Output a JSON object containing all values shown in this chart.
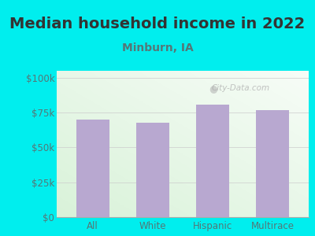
{
  "title": "Median household income in 2022",
  "subtitle": "Minburn, IA",
  "categories": [
    "All",
    "White",
    "Hispanic",
    "Multirace"
  ],
  "values": [
    70000,
    68000,
    80500,
    76500
  ],
  "bar_color": "#b8a8d0",
  "background_outer": "#00eeee",
  "yticks": [
    0,
    25000,
    50000,
    75000,
    100000
  ],
  "ytick_labels": [
    "$0",
    "$25k",
    "$50k",
    "$75k",
    "$100k"
  ],
  "ylim": [
    0,
    105000
  ],
  "title_fontsize": 14,
  "subtitle_fontsize": 10,
  "title_color": "#333333",
  "subtitle_color": "#557777",
  "tick_color": "#557777",
  "watermark": "City-Data.com"
}
